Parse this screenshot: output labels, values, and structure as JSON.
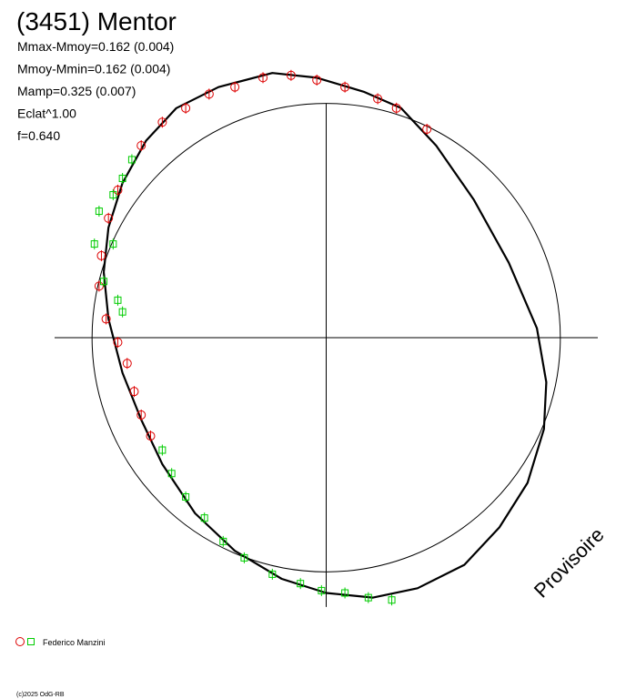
{
  "chart_data": {
    "type": "polar-lightcurve",
    "title": "(3451) Mentor",
    "stats": [
      "Mmax-Mmoy=0.162 (0.004)",
      "Mmoy-Mmin=0.162 (0.004)",
      "Mamp=0.325 (0.007)",
      "Eclat^1.00",
      "f=0.640"
    ],
    "watermark": "Provisoire",
    "footer": "(c)2025 OdG-RB",
    "legend_label": "Federico Manzini",
    "xlim": [
      -1.16,
      1.16
    ],
    "ylim": [
      -1.15,
      1.0
    ],
    "circle_radius": 1,
    "curve": {
      "color": "#000000",
      "x": [
        -0.95,
        -0.93,
        -0.87,
        -0.77,
        -0.64,
        -0.46,
        -0.23,
        -0.04,
        0.16,
        0.32,
        0.47,
        0.63,
        0.78,
        0.9,
        0.94,
        0.93,
        0.86,
        0.74,
        0.59,
        0.39,
        0.2,
        0.0,
        -0.19,
        -0.39,
        -0.56,
        -0.7,
        -0.79,
        -0.87,
        -0.93,
        -0.95
      ],
      "y": [
        0.28,
        0.47,
        0.66,
        0.84,
        0.98,
        1.07,
        1.13,
        1.11,
        1.05,
        0.98,
        0.82,
        0.59,
        0.32,
        0.04,
        -0.19,
        -0.39,
        -0.62,
        -0.81,
        -0.97,
        -1.07,
        -1.11,
        -1.09,
        -1.03,
        -0.91,
        -0.75,
        -0.54,
        -0.35,
        -0.15,
        0.08,
        0.28
      ]
    },
    "series": [
      {
        "marker": "circle",
        "color": "#dd0000",
        "x": [
          0.3,
          0.43,
          0.22,
          0.08,
          -0.04,
          -0.15,
          -0.27,
          -0.39,
          -0.5,
          -0.6,
          -0.7,
          -0.79,
          -0.89,
          -0.93,
          -0.96,
          -0.97,
          -0.94,
          -0.89,
          -0.85,
          -0.82,
          -0.79,
          -0.75
        ],
        "y": [
          0.98,
          0.89,
          1.02,
          1.07,
          1.1,
          1.12,
          1.11,
          1.07,
          1.04,
          0.98,
          0.92,
          0.82,
          0.63,
          0.51,
          0.35,
          0.22,
          0.08,
          -0.02,
          -0.11,
          -0.23,
          -0.33,
          -0.42
        ]
      },
      {
        "marker": "square",
        "color": "#00cc00",
        "x": [
          -0.83,
          -0.87,
          -0.91,
          -0.97,
          -0.99,
          -0.91,
          -0.95,
          -0.89,
          -0.87,
          -0.7,
          -0.66,
          -0.6,
          -0.52,
          -0.44,
          -0.35,
          -0.23,
          -0.11,
          -0.02,
          0.08,
          0.18,
          0.28
        ],
        "y": [
          0.76,
          0.68,
          0.61,
          0.54,
          0.4,
          0.4,
          0.24,
          0.16,
          0.11,
          -0.48,
          -0.58,
          -0.68,
          -0.77,
          -0.87,
          -0.94,
          -1.01,
          -1.05,
          -1.08,
          -1.09,
          -1.11,
          -1.12
        ]
      }
    ]
  }
}
